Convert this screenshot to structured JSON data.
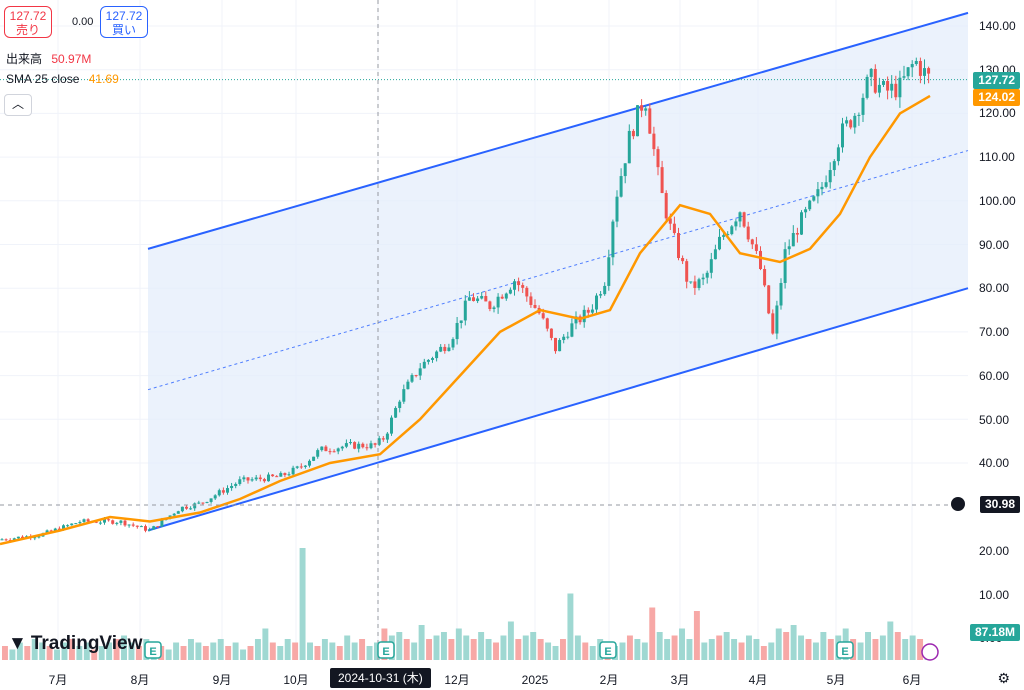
{
  "header": {
    "sell_price": "127.72",
    "sell_label": "売り",
    "spread": "0.00",
    "buy_price": "127.72",
    "buy_label": "買い",
    "volume_label": "出来高",
    "volume_value": "50.97M",
    "sma_label": "SMA 25 close",
    "sma_value": "41.69",
    "collapse_icon": "chevron-up-icon"
  },
  "price_badges": {
    "last": "127.72",
    "sma": "124.02",
    "crosshair": "30.98",
    "volume": "87.18M",
    "last_color": "#26a69a",
    "sma_color": "#ff9800",
    "crosshair_color": "#131722",
    "volume_color": "#26a69a"
  },
  "crosshair_date": "2024-10-31 (木)",
  "logo_text": "TradingView",
  "chart_data": {
    "type": "candlestick",
    "y_axis": {
      "ticks": [
        "140.00",
        "130.00",
        "120.00",
        "110.00",
        "100.00",
        "90.00",
        "80.00",
        "70.00",
        "60.00",
        "50.00",
        "40.00",
        "20.00",
        "10.00",
        "0.00"
      ],
      "price_range": [
        20,
        145
      ]
    },
    "x_axis": {
      "ticks": [
        "7月",
        "8月",
        "9月",
        "10月",
        "11月",
        "12月",
        "2025",
        "2月",
        "3月",
        "4月",
        "5月",
        "6月"
      ]
    },
    "series": [
      {
        "name": "SMA 25 close",
        "color": "#ff9800",
        "values": [
          [
            0,
            22
          ],
          [
            60,
            25
          ],
          [
            110,
            28
          ],
          [
            150,
            27
          ],
          [
            200,
            29
          ],
          [
            240,
            32
          ],
          [
            280,
            36
          ],
          [
            330,
            40
          ],
          [
            380,
            42
          ],
          [
            420,
            50
          ],
          [
            460,
            60
          ],
          [
            500,
            70
          ],
          [
            540,
            75
          ],
          [
            580,
            73
          ],
          [
            610,
            75
          ],
          [
            640,
            88
          ],
          [
            680,
            99
          ],
          [
            710,
            97
          ],
          [
            740,
            88
          ],
          [
            780,
            86
          ],
          [
            810,
            89
          ],
          [
            840,
            97
          ],
          [
            870,
            110
          ],
          [
            900,
            120
          ],
          [
            930,
            124
          ]
        ]
      }
    ],
    "price_path": [
      [
        0,
        23
      ],
      [
        40,
        24
      ],
      [
        80,
        27
      ],
      [
        120,
        27
      ],
      [
        150,
        25
      ],
      [
        180,
        30
      ],
      [
        200,
        31
      ],
      [
        240,
        36
      ],
      [
        280,
        37
      ],
      [
        300,
        39
      ],
      [
        320,
        43
      ],
      [
        350,
        44
      ],
      [
        375,
        44
      ],
      [
        385,
        46
      ],
      [
        400,
        55
      ],
      [
        420,
        62
      ],
      [
        450,
        68
      ],
      [
        470,
        78
      ],
      [
        490,
        76
      ],
      [
        515,
        82
      ],
      [
        540,
        74
      ],
      [
        555,
        66
      ],
      [
        570,
        71
      ],
      [
        590,
        75
      ],
      [
        605,
        82
      ],
      [
        615,
        100
      ],
      [
        630,
        115
      ],
      [
        645,
        124
      ],
      [
        655,
        110
      ],
      [
        660,
        103
      ],
      [
        670,
        94
      ],
      [
        690,
        80
      ],
      [
        705,
        82
      ],
      [
        720,
        91
      ],
      [
        740,
        98
      ],
      [
        760,
        85
      ],
      [
        773,
        69
      ],
      [
        785,
        88
      ],
      [
        800,
        95
      ],
      [
        820,
        102
      ],
      [
        840,
        115
      ],
      [
        855,
        120
      ],
      [
        870,
        128
      ],
      [
        885,
        125
      ],
      [
        900,
        126
      ],
      [
        915,
        132
      ],
      [
        930,
        127.72
      ]
    ],
    "volume_values": [
      4,
      3,
      5,
      4,
      6,
      5,
      4,
      3,
      5,
      6,
      4,
      5,
      3,
      4,
      5,
      6,
      7,
      5,
      4,
      6,
      5,
      4,
      3,
      5,
      4,
      6,
      5,
      4,
      5,
      6,
      4,
      5,
      3,
      4,
      6,
      9,
      5,
      4,
      6,
      5,
      32,
      5,
      4,
      6,
      5,
      4,
      7,
      5,
      6,
      4,
      5,
      9,
      7,
      8,
      6,
      5,
      10,
      6,
      7,
      8,
      6,
      9,
      7,
      6,
      8,
      6,
      5,
      7,
      11,
      6,
      7,
      8,
      6,
      5,
      4,
      6,
      19,
      7,
      5,
      4,
      6,
      5,
      4,
      5,
      7,
      6,
      5,
      15,
      8,
      6,
      7,
      9,
      6,
      14,
      5,
      6,
      7,
      8,
      6,
      5,
      7,
      6,
      4,
      5,
      9,
      8,
      10,
      7,
      6,
      5,
      8,
      6,
      7,
      9,
      6,
      5,
      8,
      6,
      7,
      11,
      8,
      6,
      7,
      6,
      4
    ],
    "channel": {
      "upper_start": [
        148,
        89
      ],
      "upper_end": [
        968,
        143
      ],
      "lower_start": [
        148,
        25
      ],
      "lower_end": [
        968,
        80
      ],
      "color": "#2962ff"
    }
  }
}
